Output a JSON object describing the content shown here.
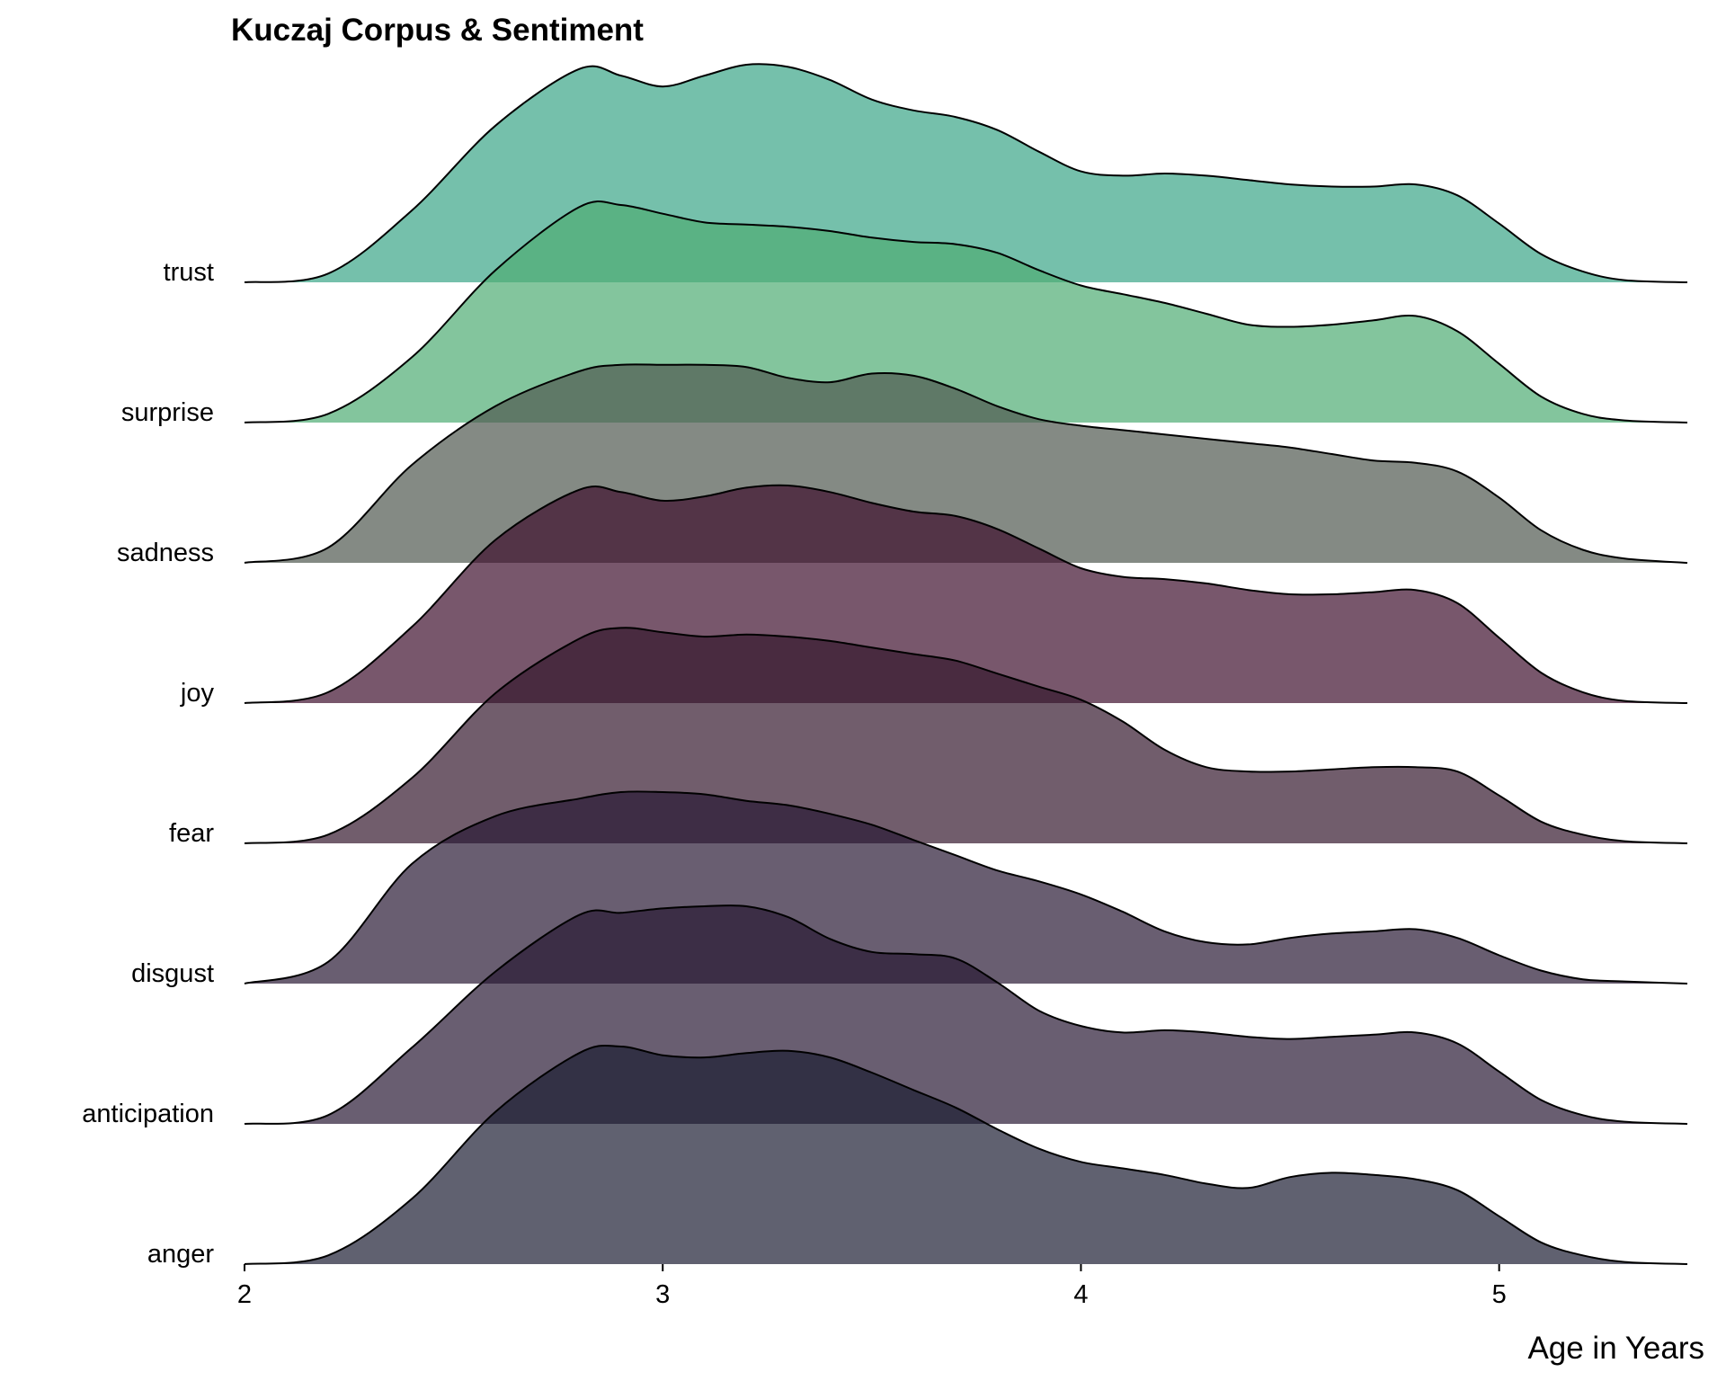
{
  "chart_data": {
    "type": "ridgeline",
    "title": "Kuczaj Corpus & Sentiment",
    "xlabel": "Age in Years",
    "ylabel": "",
    "xlim": [
      2,
      5.45
    ],
    "x_ticks": [
      "2",
      "3",
      "4",
      "5"
    ],
    "grid": false,
    "legend": "none",
    "x": [
      2.0,
      2.2,
      2.4,
      2.6,
      2.8,
      2.9,
      3.0,
      3.1,
      3.2,
      3.3,
      3.4,
      3.5,
      3.6,
      3.7,
      3.8,
      3.9,
      4.0,
      4.1,
      4.2,
      4.3,
      4.4,
      4.5,
      4.6,
      4.7,
      4.8,
      4.9,
      5.0,
      5.1,
      5.2,
      5.3,
      5.45
    ],
    "series": [
      {
        "name": "anger",
        "color": "#1d1e33",
        "values": [
          0.0,
          0.04,
          0.3,
          0.7,
          0.97,
          1.0,
          0.96,
          0.95,
          0.97,
          0.98,
          0.95,
          0.88,
          0.8,
          0.72,
          0.62,
          0.53,
          0.47,
          0.44,
          0.41,
          0.37,
          0.35,
          0.4,
          0.42,
          0.41,
          0.39,
          0.34,
          0.22,
          0.1,
          0.04,
          0.01,
          0.0
        ]
      },
      {
        "name": "anticipation",
        "color": "#2a1a35",
        "values": [
          0.0,
          0.04,
          0.35,
          0.7,
          0.96,
          0.97,
          0.99,
          1.0,
          1.0,
          0.95,
          0.85,
          0.79,
          0.78,
          0.76,
          0.65,
          0.52,
          0.45,
          0.42,
          0.43,
          0.42,
          0.4,
          0.39,
          0.4,
          0.41,
          0.42,
          0.37,
          0.24,
          0.11,
          0.04,
          0.01,
          0.0
        ]
      },
      {
        "name": "disgust",
        "color": "#2a1a35",
        "values": [
          0.0,
          0.1,
          0.55,
          0.77,
          0.85,
          0.88,
          0.88,
          0.87,
          0.84,
          0.82,
          0.78,
          0.73,
          0.66,
          0.59,
          0.52,
          0.47,
          0.41,
          0.33,
          0.24,
          0.19,
          0.18,
          0.21,
          0.23,
          0.24,
          0.25,
          0.21,
          0.13,
          0.06,
          0.02,
          0.01,
          0.0
        ]
      },
      {
        "name": "fear",
        "color": "#34182e",
        "values": [
          0.0,
          0.04,
          0.3,
          0.69,
          0.94,
          0.99,
          0.97,
          0.95,
          0.96,
          0.95,
          0.93,
          0.9,
          0.87,
          0.84,
          0.78,
          0.72,
          0.66,
          0.56,
          0.43,
          0.35,
          0.33,
          0.33,
          0.34,
          0.35,
          0.35,
          0.33,
          0.22,
          0.1,
          0.04,
          0.01,
          0.0
        ]
      },
      {
        "name": "joy",
        "color": "#3f0f2e",
        "values": [
          0.0,
          0.05,
          0.35,
          0.75,
          0.98,
          0.97,
          0.93,
          0.95,
          0.99,
          1.0,
          0.97,
          0.92,
          0.88,
          0.86,
          0.8,
          0.71,
          0.62,
          0.58,
          0.57,
          0.55,
          0.52,
          0.5,
          0.5,
          0.51,
          0.52,
          0.46,
          0.3,
          0.14,
          0.05,
          0.01,
          0.0
        ]
      },
      {
        "name": "sadness",
        "color": "#505850",
        "values": [
          0.0,
          0.07,
          0.45,
          0.72,
          0.88,
          0.91,
          0.91,
          0.91,
          0.9,
          0.85,
          0.83,
          0.87,
          0.86,
          0.8,
          0.72,
          0.66,
          0.63,
          0.61,
          0.59,
          0.57,
          0.55,
          0.53,
          0.5,
          0.47,
          0.46,
          0.42,
          0.3,
          0.15,
          0.06,
          0.02,
          0.0
        ]
      },
      {
        "name": "surprise",
        "color": "#4fad74",
        "values": [
          0.0,
          0.04,
          0.3,
          0.7,
          0.99,
          1.0,
          0.96,
          0.92,
          0.91,
          0.9,
          0.88,
          0.85,
          0.83,
          0.82,
          0.78,
          0.7,
          0.63,
          0.59,
          0.55,
          0.5,
          0.45,
          0.44,
          0.45,
          0.47,
          0.49,
          0.42,
          0.27,
          0.12,
          0.04,
          0.01,
          0.0
        ]
      },
      {
        "name": "trust",
        "color": "#3aa587",
        "values": [
          0.0,
          0.04,
          0.33,
          0.72,
          0.98,
          0.95,
          0.9,
          0.95,
          1.0,
          0.99,
          0.93,
          0.84,
          0.79,
          0.76,
          0.7,
          0.6,
          0.51,
          0.49,
          0.5,
          0.49,
          0.47,
          0.45,
          0.44,
          0.44,
          0.45,
          0.4,
          0.27,
          0.13,
          0.05,
          0.01,
          0.0
        ]
      }
    ]
  }
}
